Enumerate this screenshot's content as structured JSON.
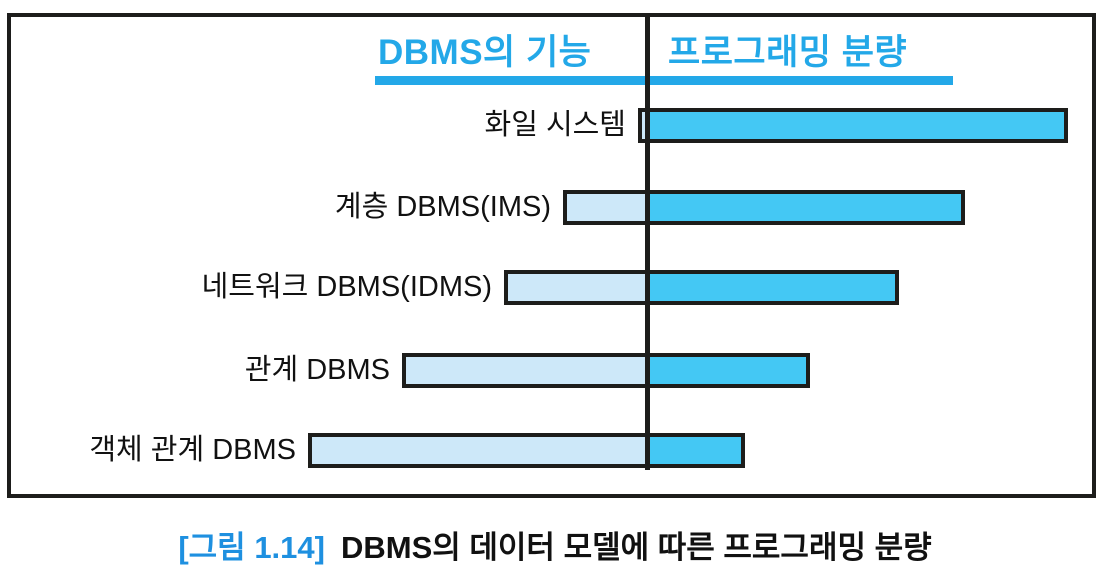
{
  "title_row": {
    "left": "DBMS의 기능",
    "right": "프로그래밍 분량"
  },
  "caption": {
    "figure_tag": "[그림 1.14]",
    "text": "DBMS의 데이터 모델에 따른 프로그래밍 분량"
  },
  "colors": {
    "accent": "#23a8e8",
    "caption_accent": "#1e90e0",
    "bar_fill": "#44c8f4",
    "bar_light": "#cde8f9",
    "ink": "#1d1d1b"
  },
  "chart_data": {
    "type": "bar",
    "subtype": "diverging-horizontal",
    "title": "",
    "categories": [
      "화일 시스템",
      "계층 DBMS(IMS)",
      "네트워크 DBMS(IDMS)",
      "관계 DBMS",
      "객체 관계 DBMS"
    ],
    "series": [
      {
        "name": "DBMS의 기능",
        "side": "left",
        "values": [
          9,
          84,
          143,
          245,
          339
        ]
      },
      {
        "name": "프로그래밍 분량",
        "side": "right",
        "values": [
          421,
          318,
          252,
          163,
          98
        ]
      }
    ],
    "units": "estimated horizontal extent in px, measured from the central divider line",
    "axis": "none",
    "legend_position": "top-column-headers",
    "grid": false
  }
}
